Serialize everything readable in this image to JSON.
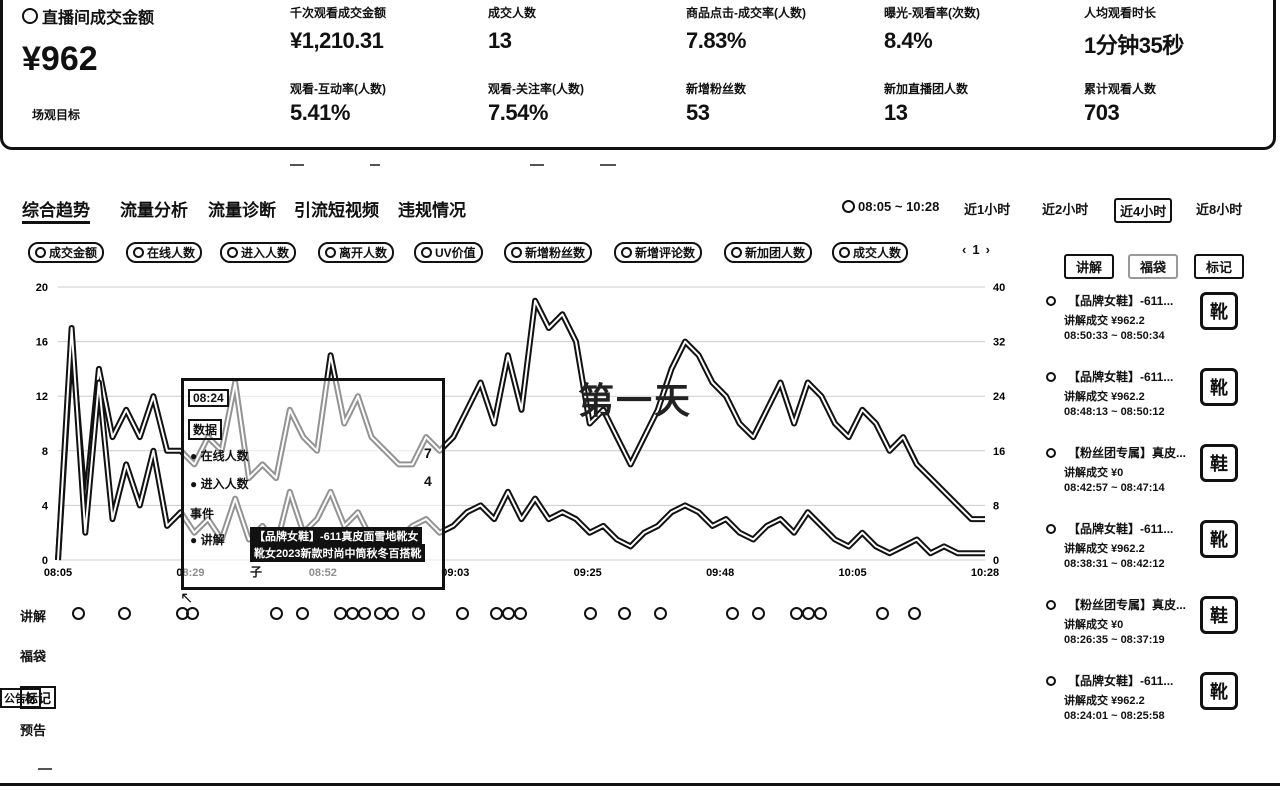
{
  "gmv": {
    "label": "直播间成交金额",
    "value": "¥962",
    "sub": "场观目标"
  },
  "metrics_row1": [
    {
      "label": "千次观看成交金额",
      "value": "¥1,210.31"
    },
    {
      "label": "成交人数",
      "value": "13"
    },
    {
      "label": "商品点击-成交率(人数)",
      "value": "7.83%"
    },
    {
      "label": "曝光-观看率(次数)",
      "value": "8.4%"
    },
    {
      "label": "人均观看时长",
      "value": "1分钟35秒"
    }
  ],
  "metrics_row2": [
    {
      "label": "观看-互动率(人数)",
      "value": "5.41%"
    },
    {
      "label": "观看-关注率(人数)",
      "value": "7.54%"
    },
    {
      "label": "新增粉丝数",
      "value": "53"
    },
    {
      "label": "新加直播团人数",
      "value": "13"
    },
    {
      "label": "累计观看人数",
      "value": "703"
    }
  ],
  "tabs": [
    "综合趋势",
    "流量分析",
    "流量诊断",
    "引流短视频",
    "违规情况"
  ],
  "time_range": "08:05 ~ 10:28",
  "ranges": [
    "近1小时",
    "近2小时",
    "近4小时",
    "近8小时"
  ],
  "legend": [
    "成交金额",
    "在线人数",
    "进入人数",
    "离开人数",
    "UV价值",
    "新增粉丝数",
    "新增评论数",
    "新加团人数",
    "成交人数"
  ],
  "legend_page": "1",
  "side_tabs": [
    "讲解",
    "福袋",
    "标记"
  ],
  "watermark": "第一天",
  "chart_data": {
    "type": "line",
    "x_ticks": [
      "08:05",
      "08:29",
      "08:52",
      "09:03",
      "09:25",
      "09:48",
      "10:05",
      "10:28"
    ],
    "y_left_ticks": [
      "20",
      "16",
      "12",
      "8",
      "4",
      "0"
    ],
    "y_right_ticks": [
      "40",
      "32",
      "24",
      "16",
      "8",
      "0"
    ],
    "ylim_left": [
      0,
      20
    ],
    "ylim_right": [
      0,
      40
    ],
    "series": [
      {
        "name": "在线人数",
        "axis": "left",
        "values": [
          0,
          16,
          4,
          14,
          9,
          11,
          9,
          12,
          8,
          8,
          7,
          9,
          8,
          13,
          6,
          7,
          6,
          11,
          9,
          8,
          15,
          10,
          12,
          9,
          8,
          7,
          7,
          9,
          8,
          9,
          11,
          13,
          10,
          15,
          11,
          19,
          17,
          18,
          16,
          10,
          11,
          9,
          7,
          9,
          11,
          14,
          16,
          15,
          13,
          12,
          10,
          9,
          11,
          13,
          10,
          13,
          12,
          10,
          9,
          11,
          10,
          8,
          9,
          7,
          6,
          5,
          4,
          3,
          3
        ]
      },
      {
        "name": "进入人数",
        "axis": "right",
        "values": [
          0,
          34,
          4,
          26,
          6,
          14,
          8,
          16,
          5,
          7,
          4,
          6,
          3,
          9,
          3,
          5,
          2,
          10,
          4,
          6,
          10,
          5,
          7,
          3,
          4,
          3,
          5,
          6,
          4,
          5,
          7,
          8,
          6,
          10,
          6,
          9,
          6,
          7,
          6,
          4,
          5,
          3,
          2,
          4,
          5,
          7,
          8,
          7,
          5,
          6,
          4,
          3,
          5,
          6,
          4,
          7,
          5,
          3,
          2,
          4,
          2,
          1,
          2,
          3,
          1,
          2,
          1,
          1,
          1
        ]
      }
    ]
  },
  "tooltip": {
    "time": "08:24",
    "section1": "数据",
    "online": "在线人数",
    "online_value": "7",
    "enter": "进入人数",
    "enter_value": "4",
    "section2": "事件",
    "explain": "讲解",
    "explain_text_1": "【品牌女鞋】-611真皮面雪地靴女",
    "explain_text_2": "靴女2023新款时尚中筒秋冬百搭靴",
    "extra": "子"
  },
  "rows": [
    "讲解",
    "福袋",
    "标记",
    "预告"
  ],
  "marker_label": "公告区",
  "explanations": [
    {
      "title": "【品牌女鞋】-611...",
      "deal": "讲解成交 ¥962.2",
      "time": "08:50:33 ~ 08:50:34",
      "thumb": "靴"
    },
    {
      "title": "【品牌女鞋】-611...",
      "deal": "讲解成交 ¥962.2",
      "time": "08:48:13 ~ 08:50:12",
      "thumb": "靴"
    },
    {
      "title": "【粉丝团专属】真皮...",
      "deal": "讲解成交 ¥0",
      "time": "08:42:57 ~ 08:47:14",
      "thumb": "鞋"
    },
    {
      "title": "【品牌女鞋】-611...",
      "deal": "讲解成交 ¥962.2",
      "time": "08:38:31 ~ 08:42:12",
      "thumb": "靴"
    },
    {
      "title": "【粉丝团专属】真皮...",
      "deal": "讲解成交 ¥0",
      "time": "08:26:35 ~ 08:37:19",
      "thumb": "鞋"
    },
    {
      "title": "【品牌女鞋】-611...",
      "deal": "讲解成交 ¥962.2",
      "time": "08:24:01 ~ 08:25:58",
      "thumb": "靴"
    }
  ]
}
